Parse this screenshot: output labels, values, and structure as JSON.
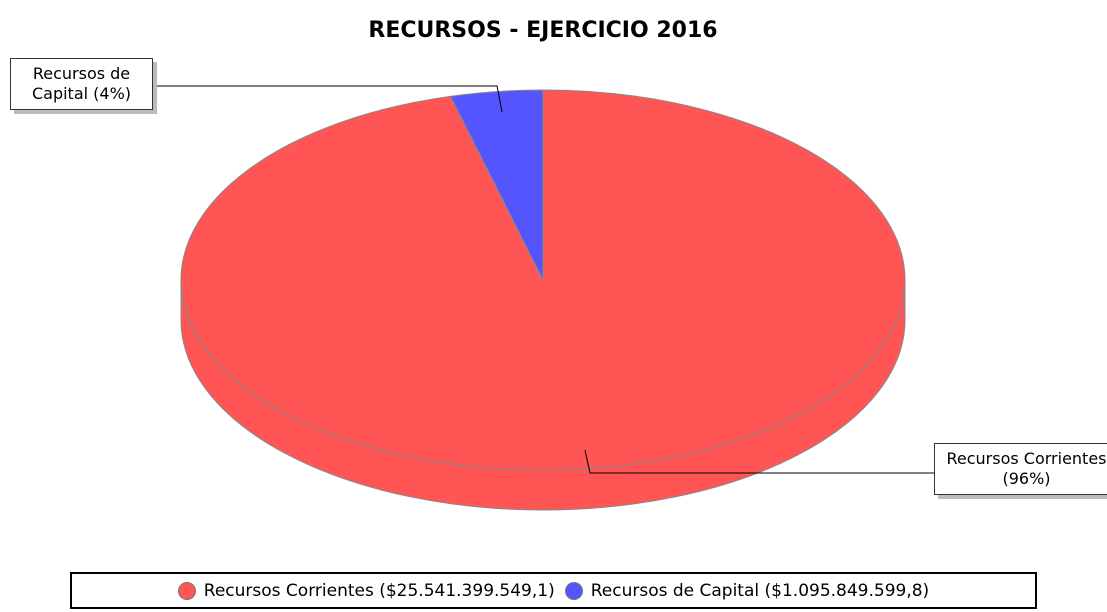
{
  "chart_data": {
    "type": "pie",
    "title": "RECURSOS - EJERCICIO 2016",
    "categories": [
      "Recursos Corrientes",
      "Recursos de Capital"
    ],
    "values": [
      25541399549.1,
      1095849599.8
    ],
    "colors": [
      "#ff5555",
      "#5555ff"
    ],
    "slice_labels": [
      "Recursos Corrientes (96%)",
      "Recursos de Capital (4%)"
    ],
    "legend_labels": [
      "Recursos Corrientes ($25.541.399.549,1)",
      "Recursos de Capital ($1.095.849.599,8)"
    ],
    "legend": "bottom"
  }
}
